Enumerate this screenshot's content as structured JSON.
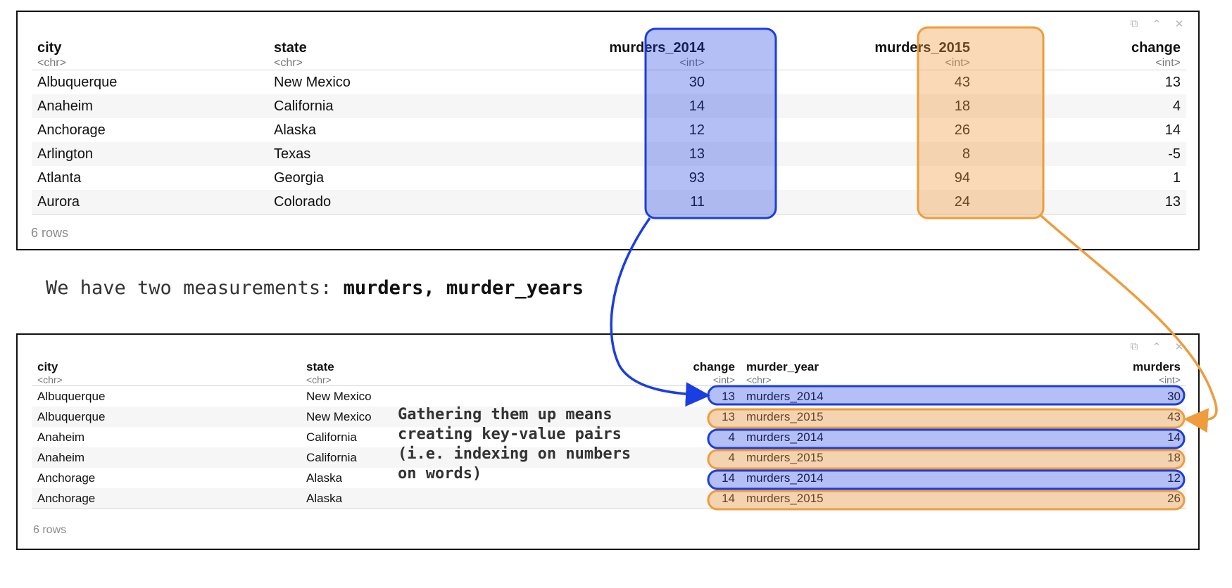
{
  "top_table": {
    "columns": [
      {
        "name": "city",
        "type": "<chr>"
      },
      {
        "name": "state",
        "type": "<chr>"
      },
      {
        "name": "murders_2014",
        "type": "<int>"
      },
      {
        "name": "murders_2015",
        "type": "<int>"
      },
      {
        "name": "change",
        "type": "<int>"
      }
    ],
    "rows": [
      [
        "Albuquerque",
        "New Mexico",
        "30",
        "43",
        "13"
      ],
      [
        "Anaheim",
        "California",
        "14",
        "18",
        "4"
      ],
      [
        "Anchorage",
        "Alaska",
        "12",
        "26",
        "14"
      ],
      [
        "Arlington",
        "Texas",
        "13",
        "8",
        "-5"
      ],
      [
        "Atlanta",
        "Georgia",
        "93",
        "94",
        "1"
      ],
      [
        "Aurora",
        "Colorado",
        "11",
        "24",
        "13"
      ]
    ],
    "row_count": "6 rows"
  },
  "caption": {
    "text": "We have two measurements: ",
    "code": "murders, murder_years"
  },
  "bottom_table": {
    "columns": [
      {
        "name": "city",
        "type": "<chr>"
      },
      {
        "name": "state",
        "type": "<chr>"
      },
      {
        "name": "change",
        "type": "<int>"
      },
      {
        "name": "murder_year",
        "type": "<chr>"
      },
      {
        "name": "murders",
        "type": "<int>"
      }
    ],
    "rows": [
      [
        "Albuquerque",
        "New Mexico",
        "13",
        "murders_2014",
        "30"
      ],
      [
        "Albuquerque",
        "New Mexico",
        "13",
        "murders_2015",
        "43"
      ],
      [
        "Anaheim",
        "California",
        "4",
        "murders_2014",
        "14"
      ],
      [
        "Anaheim",
        "California",
        "4",
        "murders_2015",
        "18"
      ],
      [
        "Anchorage",
        "Alaska",
        "14",
        "murders_2014",
        "12"
      ],
      [
        "Anchorage",
        "Alaska",
        "14",
        "murders_2015",
        "26"
      ]
    ],
    "row_count": "6 rows"
  },
  "annotation": {
    "lines": [
      "Gathering them up means",
      "creating key-value pairs",
      "(i.e. indexing on numbers",
      "on words)"
    ]
  },
  "colors": {
    "blue_fill": "#aebaf5",
    "blue_stroke": "#1a3ee0",
    "orange_fill": "#f6d6ae",
    "orange_stroke": "#ee9c3e"
  }
}
